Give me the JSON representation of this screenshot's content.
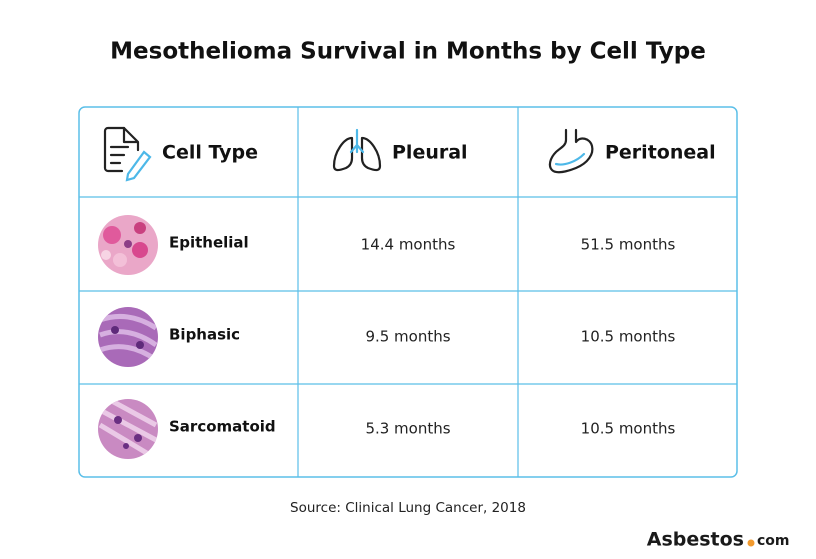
{
  "title": "Mesothelioma Survival in Months by Cell Type",
  "table": {
    "headers": [
      "Cell Type",
      "Pleural",
      "Peritoneal"
    ],
    "rows": [
      [
        "Epithelial",
        "14.4 months",
        "51.5 months"
      ],
      [
        "Biphasic",
        "9.5 months",
        "10.5 months"
      ],
      [
        "Sarcomatoid",
        "5.3 months",
        "10.5 months"
      ]
    ]
  },
  "source": "Source: Clinical Lung Cancer, 2018",
  "logo": {
    "name": "Asbestos",
    "suffix": "com"
  }
}
